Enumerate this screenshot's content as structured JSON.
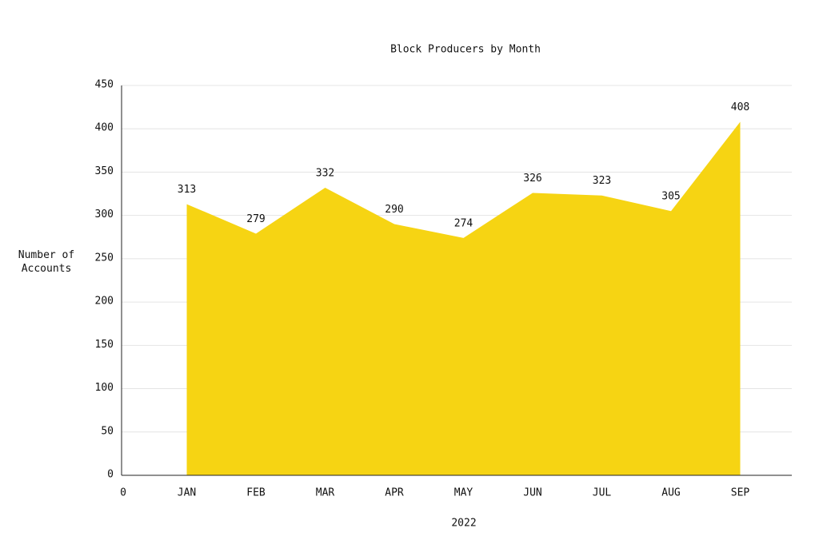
{
  "chart_data": {
    "type": "area",
    "title": "Block Producers by Month",
    "x_label": "2022",
    "y_label": "Number of Accounts",
    "categories": [
      "0",
      "JAN",
      "FEB",
      "MAR",
      "APR",
      "MAY",
      "JUN",
      "JUL",
      "AUG",
      "SEP"
    ],
    "values": [
      null,
      313,
      279,
      332,
      290,
      274,
      326,
      323,
      305,
      408
    ],
    "color": "#f6d413",
    "ylim": [
      0,
      450
    ],
    "yticks": [
      0,
      50,
      100,
      150,
      200,
      250,
      300,
      350,
      400,
      450
    ],
    "grid": true
  }
}
